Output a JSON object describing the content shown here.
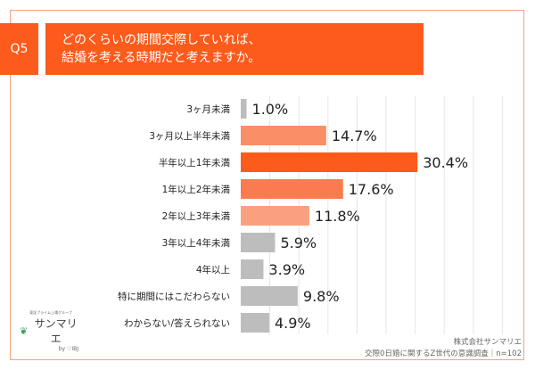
{
  "header": {
    "question_no": "Q5",
    "title_line1": "どのくらいの期間交際していれば、",
    "title_line2": "結婚を考える時期だと考えますか。"
  },
  "chart_data": {
    "type": "bar",
    "orientation": "horizontal",
    "categories": [
      "3ヶ月未満",
      "3ヶ月以上半年未満",
      "半年以上1年未満",
      "1年以上2年未満",
      "2年以上3年未満",
      "3年以上4年未満",
      "4年以上",
      "特に期間にはこだわらない",
      "わからない/答えられない"
    ],
    "values": [
      1.0,
      14.7,
      30.4,
      17.6,
      11.8,
      5.9,
      3.9,
      9.8,
      4.9
    ],
    "data_labels": [
      "1.0%",
      "14.7%",
      "30.4%",
      "17.6%",
      "11.8%",
      "5.9%",
      "3.9%",
      "9.8%",
      "4.9%"
    ],
    "colors": [
      "#bdbdbd",
      "#f98e67",
      "#fc5b1c",
      "#f97b4f",
      "#fba07e",
      "#bdbdbd",
      "#bdbdbd",
      "#bdbdbd",
      "#bdbdbd"
    ],
    "xlim": [
      0,
      45
    ],
    "grid": true,
    "unit": "%"
  },
  "logo": {
    "tagline": "東証プライム上場グループ",
    "name": "サンマリエ",
    "by": "by ♡IBJ",
    "leaf_color": "#3aa05a"
  },
  "credit": {
    "company": "株式会社サンマリエ",
    "survey": "交際0日婚に関するZ世代の意識調査｜n=102"
  }
}
